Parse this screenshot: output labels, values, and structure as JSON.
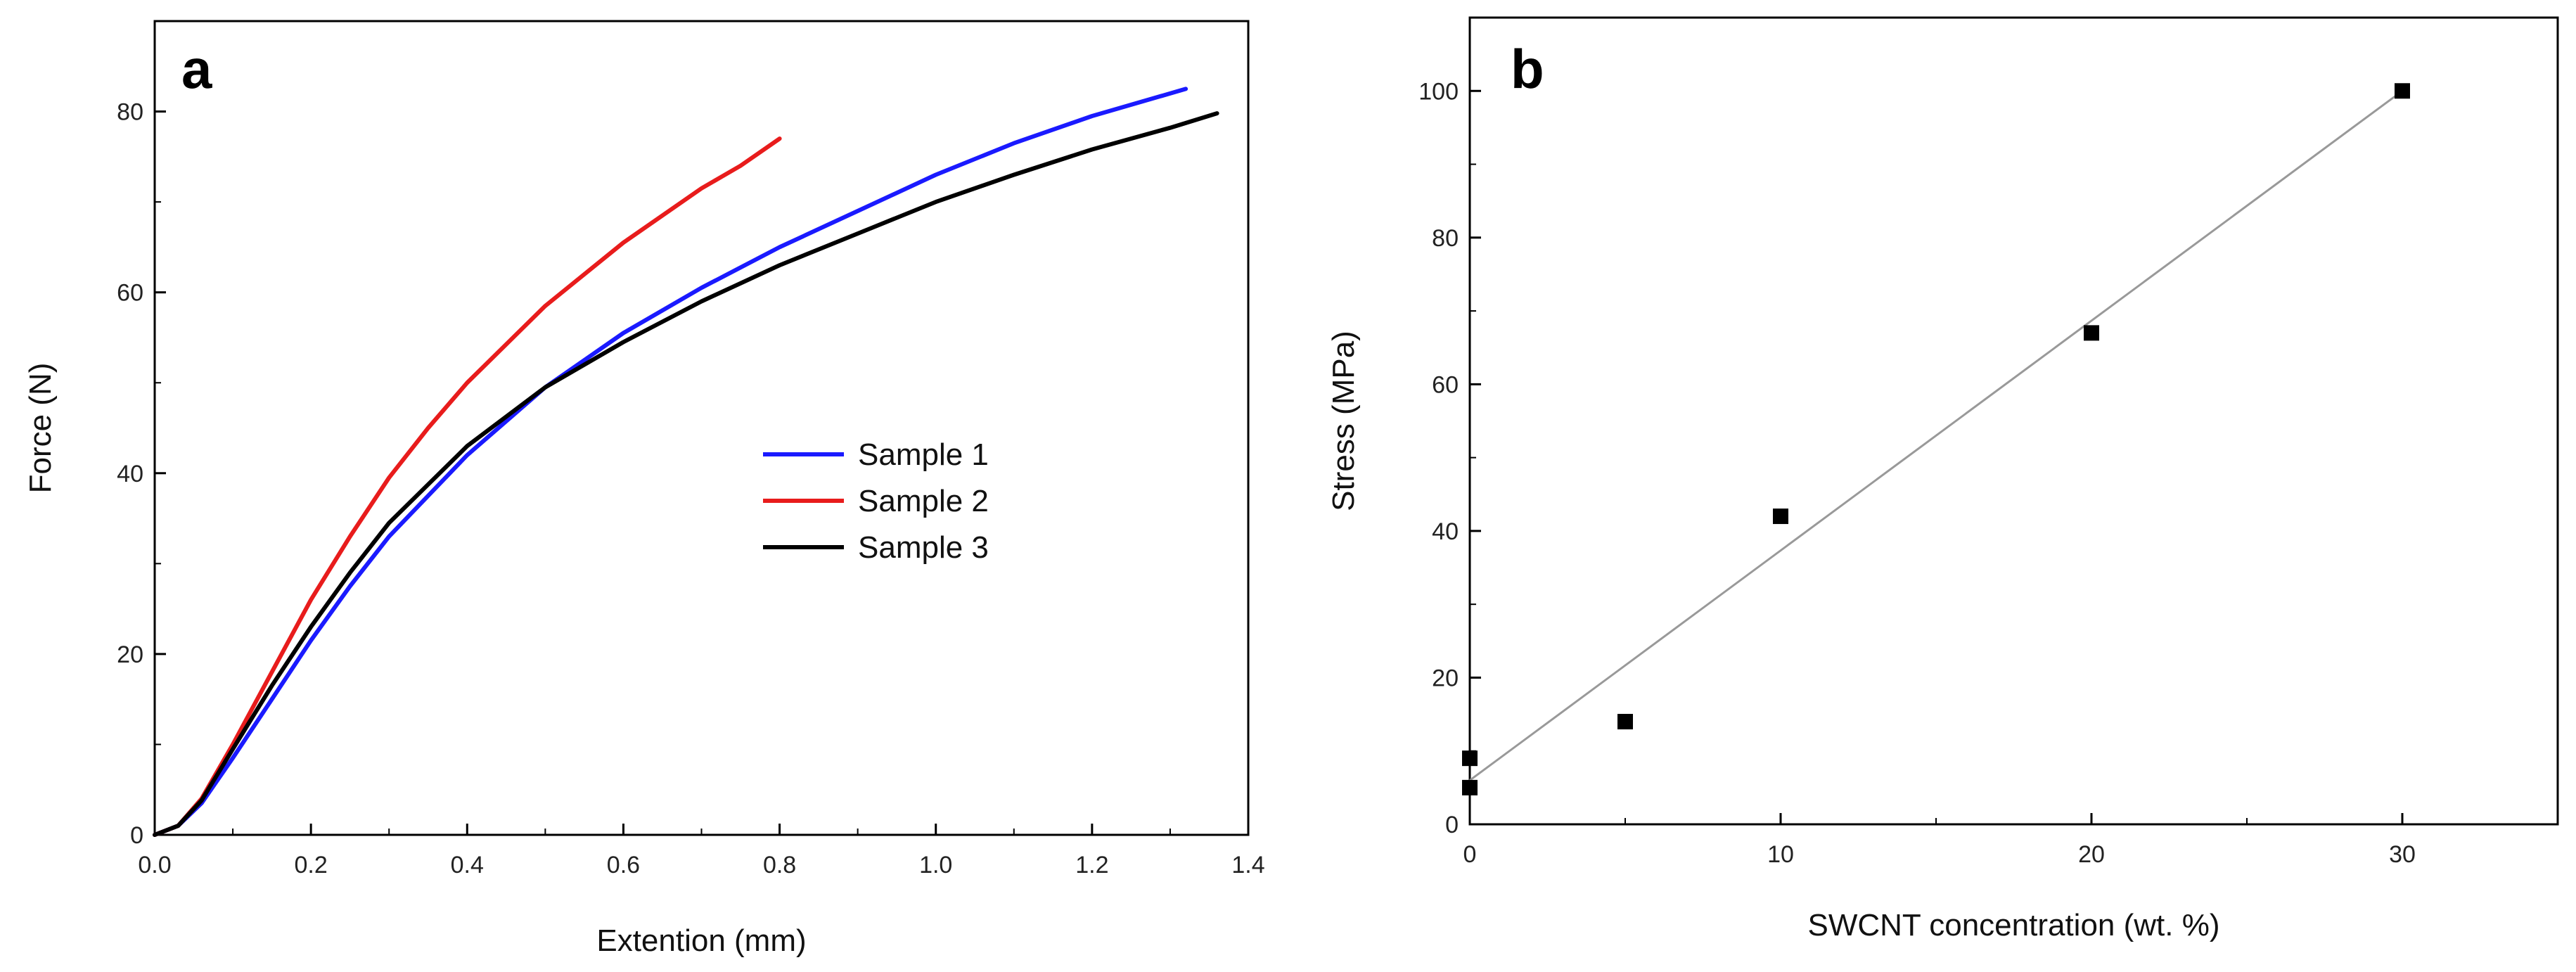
{
  "chart_data": [
    {
      "type": "line",
      "panel_label": "a",
      "xlabel": "Extention (mm)",
      "ylabel": "Force (N)",
      "xlim": [
        0,
        1.4
      ],
      "ylim": [
        0,
        90
      ],
      "xticks": [
        0.0,
        0.2,
        0.4,
        0.6,
        0.8,
        1.0,
        1.2,
        1.4
      ],
      "xtick_labels": [
        "0.0",
        "0.2",
        "0.4",
        "0.6",
        "0.8",
        "1.0",
        "1.2",
        "1.4"
      ],
      "yticks": [
        0,
        20,
        40,
        60,
        80
      ],
      "ytick_labels": [
        "0",
        "20",
        "40",
        "60",
        "80"
      ],
      "legend_position": "center-right",
      "series": [
        {
          "name": "Sample 1",
          "color": "#1a1aff",
          "x": [
            0.0,
            0.03,
            0.06,
            0.1,
            0.15,
            0.2,
            0.25,
            0.3,
            0.4,
            0.5,
            0.6,
            0.7,
            0.8,
            0.9,
            1.0,
            1.1,
            1.2,
            1.32
          ],
          "y": [
            0,
            1,
            3.5,
            8.5,
            15,
            21.5,
            27.5,
            33,
            42,
            49.5,
            55.5,
            60.5,
            65,
            69,
            73,
            76.5,
            79.5,
            82.5
          ]
        },
        {
          "name": "Sample 2",
          "color": "#e81c1c",
          "x": [
            0.0,
            0.03,
            0.06,
            0.1,
            0.15,
            0.2,
            0.25,
            0.3,
            0.35,
            0.4,
            0.5,
            0.6,
            0.7,
            0.75,
            0.8
          ],
          "y": [
            0,
            1,
            4,
            10,
            18,
            26,
            33,
            39.5,
            45,
            50,
            58.5,
            65.5,
            71.5,
            74,
            77
          ]
        },
        {
          "name": "Sample 3",
          "color": "#000000",
          "x": [
            0.0,
            0.03,
            0.06,
            0.1,
            0.15,
            0.2,
            0.25,
            0.3,
            0.4,
            0.5,
            0.6,
            0.7,
            0.8,
            0.9,
            1.0,
            1.1,
            1.2,
            1.3,
            1.36
          ],
          "y": [
            0,
            1,
            3.8,
            9.5,
            16.5,
            23,
            29,
            34.5,
            43,
            49.5,
            54.5,
            59,
            63,
            66.5,
            70,
            73,
            75.8,
            78.2,
            79.8
          ]
        }
      ]
    },
    {
      "type": "scatter",
      "panel_label": "b",
      "xlabel": "SWCNT concentration (wt. %)",
      "ylabel": "Stress (MPa)",
      "xlim": [
        0,
        35
      ],
      "ylim": [
        0,
        110
      ],
      "xticks": [
        0,
        10,
        20,
        30
      ],
      "xtick_labels": [
        "0",
        "10",
        "20",
        "30"
      ],
      "yticks": [
        0,
        20,
        40,
        60,
        80,
        100
      ],
      "ytick_labels": [
        "0",
        "20",
        "40",
        "60",
        "80",
        "100"
      ],
      "marker_color": "#000000",
      "fit_color": "#999999",
      "points": {
        "x": [
          0,
          0,
          5,
          10,
          20,
          30
        ],
        "y": [
          9,
          5,
          14,
          42,
          67,
          100
        ]
      },
      "fit_line": {
        "x": [
          0,
          30
        ],
        "y": [
          6,
          100
        ]
      }
    }
  ]
}
